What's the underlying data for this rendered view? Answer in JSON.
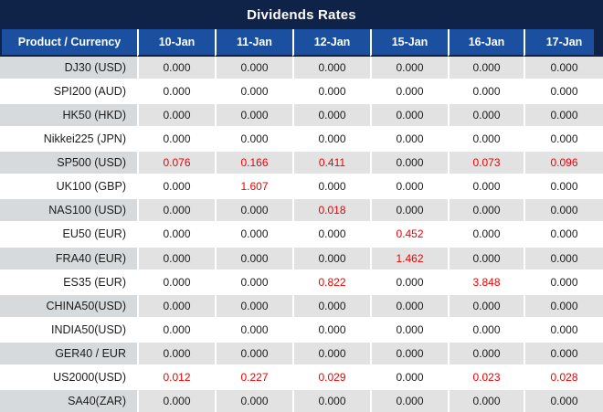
{
  "title": "Dividends Rates",
  "colors": {
    "title_bar_bg": "#0e2347",
    "header_cell_bg": "#1b4fa0",
    "header_text": "#ffffff",
    "stripe_label_bg": "#d7dadd",
    "stripe_cell_bg": "#e2e2e2",
    "value_text": "#1c1c1c",
    "nonzero_value_text": "#ee0000"
  },
  "table": {
    "corner_label": "Product / Currency",
    "date_columns": [
      "10-Jan",
      "11-Jan",
      "12-Jan",
      "15-Jan",
      "16-Jan",
      "17-Jan"
    ],
    "rows": [
      {
        "label": "DJ30 (USD)",
        "values": [
          "0.000",
          "0.000",
          "0.000",
          "0.000",
          "0.000",
          "0.000"
        ]
      },
      {
        "label": "SPI200 (AUD)",
        "values": [
          "0.000",
          "0.000",
          "0.000",
          "0.000",
          "0.000",
          "0.000"
        ]
      },
      {
        "label": "HK50 (HKD)",
        "values": [
          "0.000",
          "0.000",
          "0.000",
          "0.000",
          "0.000",
          "0.000"
        ]
      },
      {
        "label": "Nikkei225 (JPN)",
        "values": [
          "0.000",
          "0.000",
          "0.000",
          "0.000",
          "0.000",
          "0.000"
        ]
      },
      {
        "label": "SP500 (USD)",
        "values": [
          "0.076",
          "0.166",
          "0.411",
          "0.000",
          "0.073",
          "0.096"
        ]
      },
      {
        "label": "UK100 (GBP)",
        "values": [
          "0.000",
          "1.607",
          "0.000",
          "0.000",
          "0.000",
          "0.000"
        ]
      },
      {
        "label": "NAS100 (USD)",
        "values": [
          "0.000",
          "0.000",
          "0.018",
          "0.000",
          "0.000",
          "0.000"
        ]
      },
      {
        "label": "EU50 (EUR)",
        "values": [
          "0.000",
          "0.000",
          "0.000",
          "0.452",
          "0.000",
          "0.000"
        ]
      },
      {
        "label": "FRA40 (EUR)",
        "values": [
          "0.000",
          "0.000",
          "0.000",
          "1.462",
          "0.000",
          "0.000"
        ]
      },
      {
        "label": "ES35 (EUR)",
        "values": [
          "0.000",
          "0.000",
          "0.822",
          "0.000",
          "3.848",
          "0.000"
        ]
      },
      {
        "label": "CHINA50(USD)",
        "values": [
          "0.000",
          "0.000",
          "0.000",
          "0.000",
          "0.000",
          "0.000"
        ]
      },
      {
        "label": "INDIA50(USD)",
        "values": [
          "0.000",
          "0.000",
          "0.000",
          "0.000",
          "0.000",
          "0.000"
        ]
      },
      {
        "label": "GER40 / EUR",
        "values": [
          "0.000",
          "0.000",
          "0.000",
          "0.000",
          "0.000",
          "0.000"
        ]
      },
      {
        "label": "US2000(USD)",
        "values": [
          "0.012",
          "0.227",
          "0.029",
          "0.000",
          "0.023",
          "0.028"
        ]
      },
      {
        "label": "SA40(ZAR)",
        "values": [
          "0.000",
          "0.000",
          "0.000",
          "0.000",
          "0.000",
          "0.000"
        ]
      }
    ]
  }
}
